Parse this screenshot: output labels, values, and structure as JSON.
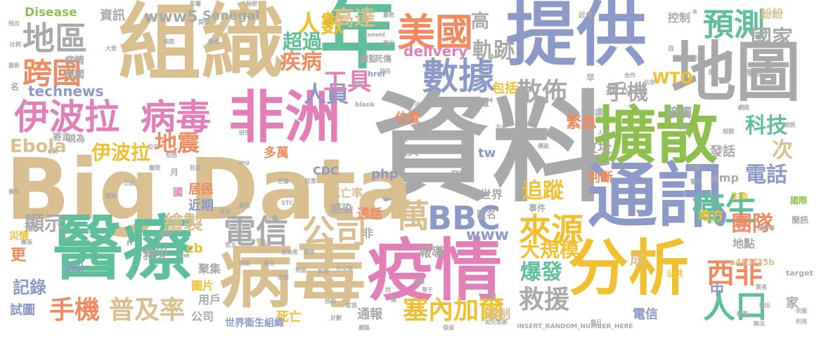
{
  "words": [
    {
      "text": "資料",
      "color": "#a9a9a9",
      "vertical": false
    },
    {
      "text": "Big Data",
      "color": "#d9bf8f",
      "vertical": false
    },
    {
      "text": "組織",
      "color": "#d9bf8f",
      "vertical": false
    },
    {
      "text": "提供",
      "color": "#8d9ac8",
      "vertical": false
    },
    {
      "text": "年",
      "color": "#5fbf9a",
      "vertical": false
    },
    {
      "text": "地圖",
      "color": "#a9a9a9",
      "vertical": false
    },
    {
      "text": "擴散",
      "color": "#8fbf4f",
      "vertical": false
    },
    {
      "text": "非洲",
      "color": "#e27fb8",
      "vertical": false
    },
    {
      "text": "通訊",
      "color": "#8d9ac8",
      "vertical": false
    },
    {
      "text": "醫療",
      "color": "#5fbf9a",
      "vertical": false
    },
    {
      "text": "病毒",
      "color": "#d9bf8f",
      "vertical": false
    },
    {
      "text": "疫情",
      "color": "#e27fb8",
      "vertical": false
    },
    {
      "text": "分析",
      "color": "#f0c030",
      "vertical": false
    },
    {
      "text": "伊波拉",
      "color": "#e27fb8",
      "vertical": false
    },
    {
      "text": "病毒",
      "color": "#e27fb8",
      "vertical": false
    },
    {
      "text": "地區",
      "color": "#a9a9a9",
      "vertical": false
    },
    {
      "text": "跨國",
      "color": "#f08a60",
      "vertical": false
    },
    {
      "text": "美國",
      "color": "#f08a60",
      "vertical": false
    },
    {
      "text": "數據",
      "color": "#8d9ac8",
      "vertical": false
    },
    {
      "text": "預測",
      "color": "#5fbf9a",
      "vertical": false
    },
    {
      "text": "衛生",
      "color": "#5fbf9a",
      "vertical": false
    },
    {
      "text": "來源",
      "color": "#f0c030",
      "vertical": false
    },
    {
      "text": "人口",
      "color": "#5fbf9a",
      "vertical": false
    },
    {
      "text": "西非",
      "color": "#f08a60",
      "vertical": false
    },
    {
      "text": "電信",
      "color": "#a9a9a9",
      "vertical": false
    },
    {
      "text": "公司",
      "color": "#d9bf8f",
      "vertical": false
    },
    {
      "text": "BBC",
      "color": "#8d9ac8",
      "vertical": false
    },
    {
      "text": "手機",
      "color": "#f08a60",
      "vertical": false
    },
    {
      "text": "普及率",
      "color": "#d9bf8f",
      "vertical": false
    },
    {
      "text": "塞內加爾",
      "color": "#f0c030",
      "vertical": false
    },
    {
      "text": "救援",
      "color": "#a9a9a9",
      "vertical": false
    },
    {
      "text": "散佈",
      "color": "#a9a9a9",
      "vertical": false
    },
    {
      "text": "人員",
      "color": "#8d9ac8",
      "vertical": false
    },
    {
      "text": "工具",
      "color": "#e27fb8",
      "vertical": false
    },
    {
      "text": "人數",
      "color": "#f0c030",
      "vertical": false
    },
    {
      "text": "疾病",
      "color": "#f08a60",
      "vertical": false
    },
    {
      "text": "超過",
      "color": "#5fbf9a",
      "vertical": false
    },
    {
      "text": "高達",
      "color": "#d9bf8f",
      "vertical": false
    },
    {
      "text": "軌跡",
      "color": "#a9a9a9",
      "vertical": false
    },
    {
      "text": "手機",
      "color": "#a9a9a9",
      "vertical": false
    },
    {
      "text": "科技",
      "color": "#5fbf9a",
      "vertical": false
    },
    {
      "text": "國家",
      "color": "#a9a9a9",
      "vertical": false
    },
    {
      "text": "電話",
      "color": "#8d9ac8",
      "vertical": false
    },
    {
      "text": "團隊",
      "color": "#f08a60",
      "vertical": false
    },
    {
      "text": "追蹤",
      "color": "#f0c030",
      "vertical": false
    },
    {
      "text": "萬",
      "color": "#d9bf8f",
      "vertical": false
    },
    {
      "text": "伊波拉",
      "color": "#f0c030",
      "vertical": false
    },
    {
      "text": "地震",
      "color": "#f08a60",
      "vertical": false
    },
    {
      "text": "Ebola",
      "color": "#d9bf8f",
      "vertical": false
    },
    {
      "text": "technews",
      "color": "#8d9ac8",
      "vertical": false
    },
    {
      "text": "繪製",
      "color": "#d9bf8f",
      "vertical": false
    },
    {
      "text": "顯示",
      "color": "#a9a9a9",
      "vertical": false
    },
    {
      "text": "記錄",
      "color": "#8d9ac8",
      "vertical": false
    },
    {
      "text": "爆發",
      "color": "#5fbf9a",
      "vertical": false
    },
    {
      "text": "大規模",
      "color": "#f0c030",
      "vertical": false
    },
    {
      "text": "次",
      "color": "#d9bf8f",
      "vertical": false
    },
    {
      "text": "位址",
      "color": "#a9a9a9",
      "vertical": false
    },
    {
      "text": "緊急",
      "color": "#f08a60",
      "vertical": false
    },
    {
      "text": "www",
      "color": "#8d9ac8",
      "vertical": false
    },
    {
      "text": "www5",
      "color": "#a9a9a9",
      "vertical": false
    },
    {
      "text": "WTO",
      "color": "#f0c030",
      "vertical": false
    },
    {
      "text": "delivery",
      "color": "#e27fb8",
      "vertical": false
    },
    {
      "text": "Disease",
      "color": "#8fbf4f",
      "vertical": false
    },
    {
      "text": "Senegal",
      "color": "#a9a9a9",
      "vertical": false
    },
    {
      "text": "資訊",
      "color": "#a9a9a9",
      "vertical": false
    },
    {
      "text": "高",
      "color": "#a9a9a9",
      "vertical": false
    },
    {
      "text": "CDC",
      "color": "#8d9ac8",
      "vertical": false
    },
    {
      "text": "php",
      "color": "#8d9ac8",
      "vertical": false
    },
    {
      "text": "tw",
      "color": "#8d9ac8",
      "vertical": false
    },
    {
      "text": "amp",
      "color": "#a9a9a9",
      "vertical": false
    },
    {
      "text": "發話",
      "color": "#a9a9a9",
      "vertical": false
    },
    {
      "text": "判斷",
      "color": "#f08a60",
      "vertical": false
    },
    {
      "text": "接觸",
      "color": "#a9a9a9",
      "vertical": false
    },
    {
      "text": "控制",
      "color": "#a9a9a9",
      "vertical": false
    },
    {
      "text": "紛紛",
      "color": "#d9bf8f",
      "vertical": false
    },
    {
      "text": "病人",
      "color": "#a9a9a9",
      "vertical": false
    },
    {
      "text": "包括",
      "color": "#f0c030",
      "vertical": false
    },
    {
      "text": "位置",
      "color": "#f08a60",
      "vertical": false
    },
    {
      "text": "瑞典",
      "color": "#a9a9a9",
      "vertical": false
    },
    {
      "text": "筆",
      "color": "#a9a9a9",
      "vertical": false
    },
    {
      "text": "多萬",
      "color": "#f08a60",
      "vertical": false
    },
    {
      "text": "居民",
      "color": "#f08a60",
      "vertical": false
    },
    {
      "text": "近期",
      "color": "#8d9ac8",
      "vertical": false
    },
    {
      "text": "救災",
      "color": "#a9a9a9",
      "vertical": false
    },
    {
      "text": "世界",
      "color": "#a9a9a9",
      "vertical": false
    },
    {
      "text": "死亡率",
      "color": "#d9bf8f",
      "vertical": false
    },
    {
      "text": "感染",
      "color": "#a9a9a9",
      "vertical": false
    },
    {
      "text": "通話",
      "color": "#f08a60",
      "vertical": false
    },
    {
      "text": "報導",
      "color": "#a9a9a9",
      "vertical": false
    },
    {
      "text": "通報",
      "color": "#a9a9a9",
      "vertical": false
    },
    {
      "text": "死亡",
      "color": "#f0c030",
      "vertical": false
    },
    {
      "text": "遏制",
      "color": "#d9bf8f",
      "vertical": false
    },
    {
      "text": "電信",
      "color": "#8d9ac8",
      "vertical": false
    },
    {
      "text": "地方",
      "color": "#f0c030",
      "vertical": false
    },
    {
      "text": "中",
      "color": "#8d9ac8",
      "vertical": false
    },
    {
      "text": "家",
      "color": "#a9a9a9",
      "vertical": false
    },
    {
      "text": "地點",
      "color": "#a9a9a9",
      "vertical": false
    },
    {
      "text": "成",
      "color": "#d9bf8f",
      "vertical": false
    },
    {
      "text": "聚集",
      "color": "#a9a9a9",
      "vertical": false
    },
    {
      "text": "圖片",
      "color": "#f0c030",
      "vertical": false
    },
    {
      "text": "用戶",
      "color": "#a9a9a9",
      "vertical": false
    },
    {
      "text": "公司",
      "color": "#a9a9a9",
      "vertical": false
    },
    {
      "text": "試圖",
      "color": "#8d9ac8",
      "vertical": false
    },
    {
      "text": "世界衛生組織",
      "color": "#8d9ac8",
      "vertical": false
    },
    {
      "text": "cb",
      "color": "#f0c030",
      "vertical": false
    },
    {
      "text": "統計",
      "color": "#8d9ac8",
      "vertical": false
    },
    {
      "text": "更",
      "color": "#f08a60",
      "vertical": false
    },
    {
      "text": "災情",
      "color": "#f0c030",
      "vertical": false
    },
    {
      "text": "非",
      "color": "#a9a9a9",
      "vertical": false
    },
    {
      "text": "國",
      "color": "#e27fb8",
      "vertical": false
    },
    {
      "text": "事件",
      "color": "#a9a9a9",
      "vertical": false
    },
    {
      "text": "發現",
      "color": "#a9a9a9",
      "vertical": false
    },
    {
      "text": "匿名",
      "color": "#a9a9a9",
      "vertical": false
    },
    {
      "text": "生命",
      "color": "#f0c030",
      "vertical": false
    },
    {
      "text": "國際",
      "color": "#8fbf4f",
      "vertical": false
    },
    {
      "text": "簡訊",
      "color": "#a9a9a9",
      "vertical": false
    },
    {
      "text": "a4b3f35b",
      "color": "#d9bf8f",
      "vertical": false
    },
    {
      "text": "target",
      "color": "#a9a9a9",
      "vertical": false
    },
    {
      "text": "公共",
      "color": "#f0c030",
      "vertical": false
    },
    {
      "text": "肆虐",
      "color": "#a9a9a9",
      "vertical": false
    },
    {
      "text": "海地",
      "color": "#a9a9a9",
      "vertical": false
    },
    {
      "text": "近代",
      "color": "#a9a9a9",
      "vertical": false
    },
    {
      "text": "早",
      "color": "#a9a9a9",
      "vertical": false
    },
    {
      "text": "總監",
      "color": "#a9a9a9",
      "vertical": false
    },
    {
      "text": "死傷",
      "color": "#a9a9a9",
      "vertical": false
    },
    {
      "text": "德國",
      "color": "#a9a9a9",
      "vertical": false
    },
    {
      "text": "病情",
      "color": "#a9a9a9",
      "vertical": false
    },
    {
      "text": "href",
      "color": "#8d9ac8",
      "vertical": false
    },
    {
      "text": "遭",
      "color": "#a9a9a9",
      "vertical": false
    },
    {
      "text": "寄走",
      "color": "#a9a9a9",
      "vertical": false
    },
    {
      "text": "視為",
      "color": "#a9a9a9",
      "vertical": false
    },
    {
      "text": "ck",
      "color": "#a9a9a9",
      "vertical": false
    },
    {
      "text": "名",
      "color": "#a9a9a9",
      "vertical": false
    },
    {
      "text": "INSERT_RANDOM_NUMBER_HERE",
      "color": "#a9a9a9",
      "vertical": false
    },
    {
      "text": "INSERT_RANDOM",
      "color": "#a9a9a9",
      "vertical": false
    },
    {
      "text": "blank",
      "color": "#a9a9a9",
      "vertical": false
    },
    {
      "text": "月",
      "color": "#a9a9a9",
      "vertical": false
    },
    {
      "text": "img",
      "color": "#a9a9a9",
      "vertical": false
    },
    {
      "text": "aw",
      "color": "#a9a9a9",
      "vertical": false
    },
    {
      "text": "n",
      "color": "#a9a9a9",
      "vertical": false
    },
    {
      "text": "a",
      "color": "#a9a9a9",
      "vertical": false
    },
    {
      "text": "自",
      "color": "#a9a9a9",
      "vertical": false
    },
    {
      "text": "是",
      "color": "#a9a9a9",
      "vertical": false
    },
    {
      "text": "zoneid",
      "color": "#a9a9a9",
      "vertical": false
    },
    {
      "text": "秘密",
      "color": "#a9a9a9",
      "vertical": false
    },
    {
      "text": "方式",
      "color": "#a9a9a9",
      "vertical": false
    },
    {
      "text": "北非",
      "color": "#a9a9a9",
      "vertical": false
    },
    {
      "text": "合作",
      "color": "#a9a9a9",
      "vertical": false
    },
    {
      "text": "影",
      "color": "#a9a9a9",
      "vertical": false
    },
    {
      "text": "服刑",
      "color": "#a9a9a9",
      "vertical": false
    },
    {
      "text": "傳染",
      "color": "#a9a9a9",
      "vertical": false
    },
    {
      "text": "嚴密",
      "color": "#a9a9a9",
      "vertical": false
    },
    {
      "text": "病例",
      "color": "#a9a9a9",
      "vertical": false
    },
    {
      "text": "床層等",
      "color": "#a9a9a9",
      "vertical": false
    },
    {
      "text": "業者",
      "color": "#a9a9a9",
      "vertical": false
    },
    {
      "text": "衣服",
      "color": "#a9a9a9",
      "vertical": false
    },
    {
      "text": "利用",
      "color": "#a9a9a9",
      "vertical": false
    },
    {
      "text": "教育",
      "color": "#a9a9a9",
      "vertical": false
    },
    {
      "text": "無法",
      "color": "#a9a9a9",
      "vertical": false
    },
    {
      "text": "轉出",
      "color": "#a9a9a9",
      "vertical": false
    },
    {
      "text": "擁有",
      "color": "#a9a9a9",
      "vertical": false
    },
    {
      "text": "團長",
      "color": "#a9a9a9",
      "vertical": false
    },
    {
      "text": "比例",
      "color": "#a9a9a9",
      "vertical": false
    },
    {
      "text": "最新",
      "color": "#a9a9a9",
      "vertical": false
    },
    {
      "text": "指出",
      "color": "#a9a9a9",
      "vertical": false
    },
    {
      "text": "大眾",
      "color": "#a9a9a9",
      "vertical": false
    },
    {
      "text": "病院",
      "color": "#a9a9a9",
      "vertical": false
    },
    {
      "text": "激增",
      "color": "#a9a9a9",
      "vertical": false
    },
    {
      "text": "影響",
      "color": "#a9a9a9",
      "vertical": false
    },
    {
      "text": "提醒",
      "color": "#a9a9a9",
      "vertical": false
    },
    {
      "text": "前往",
      "color": "#a9a9a9",
      "vertical": false
    },
    {
      "text": "找到",
      "color": "#a9a9a9",
      "vertical": false
    },
    {
      "text": "推出",
      "color": "#a9a9a9",
      "vertical": false
    },
    {
      "text": "迅速",
      "color": "#a9a9a9",
      "vertical": false
    },
    {
      "text": "人類",
      "color": "#a9a9a9",
      "vertical": false
    },
    {
      "text": "家庭",
      "color": "#a9a9a9",
      "vertical": false
    },
    {
      "text": "網路",
      "color": "#a9a9a9",
      "vertical": false
    },
    {
      "text": "手段",
      "color": "#a9a9a9",
      "vertical": false
    },
    {
      "text": "短期",
      "color": "#a9a9a9",
      "vertical": false
    },
    {
      "text": "警告",
      "color": "#a9a9a9",
      "vertical": false
    },
    {
      "text": "巨量",
      "color": "#a9a9a9",
      "vertical": false
    },
    {
      "text": "民眾",
      "color": "#a9a9a9",
      "vertical": false
    },
    {
      "text": "翻倍",
      "color": "#a9a9a9",
      "vertical": false
    },
    {
      "text": "STC",
      "color": "#a9a9a9",
      "vertical": false
    },
    {
      "text": "暫時",
      "color": "#a9a9a9",
      "vertical": false
    },
    {
      "text": "知悉",
      "color": "#a9a9a9",
      "vertical": false
    },
    {
      "text": "醫院",
      "color": "#a9a9a9",
      "vertical": false
    },
    {
      "text": "防疫",
      "color": "#a9a9a9",
      "vertical": false
    },
    {
      "text": "日前",
      "color": "#a9a9a9",
      "vertical": false
    },
    {
      "text": "目前",
      "color": "#a9a9a9",
      "vertical": false
    },
    {
      "text": "緩解",
      "color": "#a9a9a9",
      "vertical": false
    },
    {
      "text": "研發",
      "color": "#a9a9a9",
      "vertical": false
    },
    {
      "text": "官方",
      "color": "#a9a9a9",
      "vertical": false
    },
    {
      "text": "地面",
      "color": "#a9a9a9",
      "vertical": false
    },
    {
      "text": "新聞",
      "color": "#a9a9a9",
      "vertical": false
    },
    {
      "text": "一萬",
      "color": "#a9a9a9",
      "vertical": false
    },
    {
      "text": "技術",
      "color": "#a9a9a9",
      "vertical": false
    },
    {
      "text": "個案",
      "color": "#a9a9a9",
      "vertical": false
    },
    {
      "text": "聯合",
      "color": "#a9a9a9",
      "vertical": false
    },
    {
      "text": "感染者",
      "color": "#a9a9a9",
      "vertical": false
    },
    {
      "text": "轉移",
      "color": "#a9a9a9",
      "vertical": false
    },
    {
      "text": "外交部",
      "color": "#a9a9a9",
      "vertical": false
    },
    {
      "text": "疾管",
      "color": "#a9a9a9",
      "vertical": false
    },
    {
      "text": "找",
      "color": "#a9a9a9",
      "vertical": false
    },
    {
      "text": "接獲",
      "color": "#a9a9a9",
      "vertical": false
    },
    {
      "text": "目標",
      "color": "#a9a9a9",
      "vertical": false
    },
    {
      "text": "等于",
      "color": "#a9a9a9",
      "vertical": false
    },
    {
      "text": "疫苗",
      "color": "#a9a9a9",
      "vertical": false
    },
    {
      "text": "計劃",
      "color": "#a9a9a9",
      "vertical": false
    },
    {
      "text": "網路",
      "color": "#a9a9a9",
      "vertical": false
    },
    {
      "text": "保留",
      "color": "#a9a9a9",
      "vertical": false
    },
    {
      "text": "如火如荼",
      "color": "#a9a9a9",
      "vertical": false
    },
    {
      "text": "每日",
      "color": "#a9a9a9",
      "vertical": false
    },
    {
      "text": "研究",
      "color": "#a9a9a9",
      "vertical": false
    },
    {
      "text": "位在",
      "color": "#a9a9a9",
      "vertical": false
    }
  ]
}
